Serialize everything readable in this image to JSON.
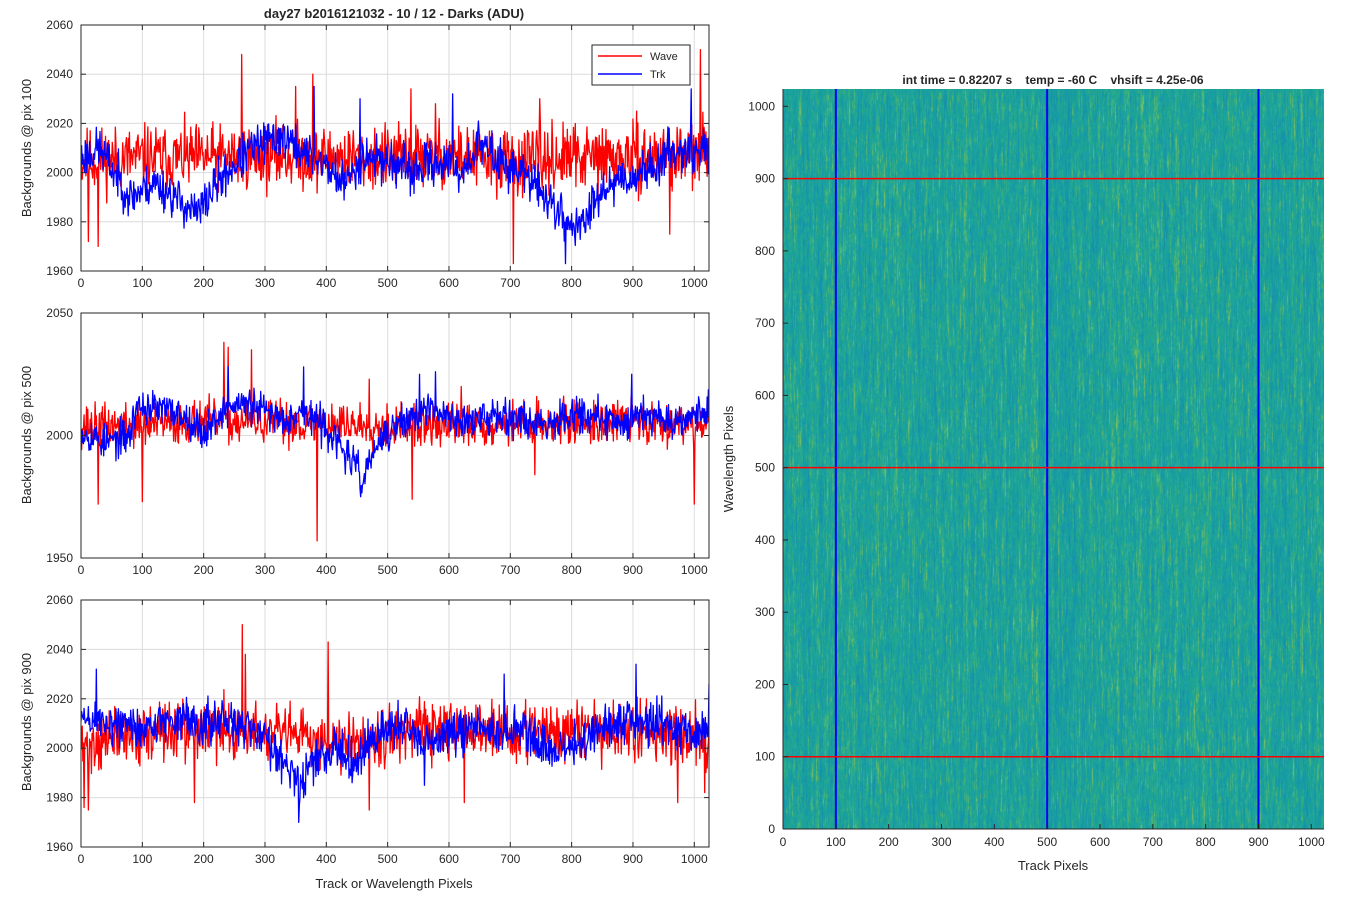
{
  "colors": {
    "wave": "#ff0000",
    "trk": "#0000ff",
    "axis": "#262626",
    "grid": "#dcdcdc",
    "image_base": "#1fa39a",
    "image_light": "#7cc07a",
    "image_dark": "#1592a8"
  },
  "chart_data": [
    {
      "type": "line",
      "title": "day27 b2016121032 - 10 / 12 - Darks (ADU)",
      "xlabel": "",
      "ylabel": "Backgrounds @ pix 100",
      "xlim": [
        0,
        1024
      ],
      "ylim": [
        1960,
        2060
      ],
      "xticks": [
        0,
        100,
        200,
        300,
        400,
        500,
        600,
        700,
        800,
        900,
        1000
      ],
      "yticks": [
        1960,
        1980,
        2000,
        2020,
        2040,
        2060
      ],
      "grid": true,
      "legend": {
        "placement": "top-right",
        "entries": [
          "Wave",
          "Trk"
        ]
      },
      "series": [
        {
          "name": "Wave",
          "color": "#ff0000",
          "noise": 9,
          "seed": 11,
          "anchors": [
            [
              0,
              2005
            ],
            [
              100,
              2006
            ],
            [
              200,
              2006
            ],
            [
              300,
              2007
            ],
            [
              400,
              2006
            ],
            [
              500,
              2006
            ],
            [
              600,
              2007
            ],
            [
              700,
              2004
            ],
            [
              800,
              2006
            ],
            [
              900,
              2006
            ],
            [
              1024,
              2008
            ]
          ],
          "spikes": [
            [
              12,
              1972
            ],
            [
              28,
              1970
            ],
            [
              262,
              2048
            ],
            [
              350,
              2035
            ],
            [
              378,
              2040
            ],
            [
              538,
              2034
            ],
            [
              578,
              2028
            ],
            [
              705,
              1963
            ],
            [
              748,
              2030
            ],
            [
              960,
              1975
            ],
            [
              1010,
              2050
            ]
          ]
        },
        {
          "name": "Trk",
          "color": "#0000ff",
          "noise": 6,
          "seed": 23,
          "anchors": [
            [
              0,
              2006
            ],
            [
              30,
              2010
            ],
            [
              80,
              1990
            ],
            [
              120,
              1996
            ],
            [
              190,
              1983
            ],
            [
              220,
              1995
            ],
            [
              250,
              2003
            ],
            [
              280,
              2010
            ],
            [
              330,
              2015
            ],
            [
              360,
              2008
            ],
            [
              390,
              2005
            ],
            [
              430,
              1995
            ],
            [
              460,
              2007
            ],
            [
              500,
              2005
            ],
            [
              540,
              2000
            ],
            [
              580,
              2005
            ],
            [
              620,
              2000
            ],
            [
              650,
              2012
            ],
            [
              680,
              2005
            ],
            [
              720,
              2000
            ],
            [
              760,
              1990
            ],
            [
              790,
              1980
            ],
            [
              820,
              1978
            ],
            [
              840,
              1992
            ],
            [
              880,
              1998
            ],
            [
              900,
              1998
            ],
            [
              930,
              2002
            ],
            [
              970,
              2010
            ],
            [
              1000,
              2008
            ],
            [
              1024,
              2010
            ]
          ],
          "spikes": [
            [
              380,
              2035
            ],
            [
              455,
              2030
            ],
            [
              606,
              2032
            ],
            [
              790,
              1963
            ],
            [
              995,
              2034
            ]
          ]
        }
      ]
    },
    {
      "type": "line",
      "xlabel": "",
      "ylabel": "Backgrounds @ pix 500",
      "xlim": [
        0,
        1024
      ],
      "ylim": [
        1950,
        2050
      ],
      "xticks": [
        0,
        100,
        200,
        300,
        400,
        500,
        600,
        700,
        800,
        900,
        1000
      ],
      "yticks": [
        1950,
        2000,
        2050
      ],
      "grid": true,
      "series": [
        {
          "name": "Wave",
          "color": "#ff0000",
          "noise": 6,
          "seed": 37,
          "anchors": [
            [
              0,
              2004
            ],
            [
              100,
              2004
            ],
            [
              200,
              2006
            ],
            [
              300,
              2005
            ],
            [
              400,
              2005
            ],
            [
              500,
              2004
            ],
            [
              600,
              2004
            ],
            [
              700,
              2005
            ],
            [
              800,
              2005
            ],
            [
              900,
              2006
            ],
            [
              1024,
              2005
            ]
          ],
          "spikes": [
            [
              28,
              1972
            ],
            [
              100,
              1973
            ],
            [
              233,
              2038
            ],
            [
              240,
              2036
            ],
            [
              278,
              2035
            ],
            [
              385,
              1957
            ],
            [
              470,
              2023
            ],
            [
              540,
              1974
            ],
            [
              620,
              2020
            ],
            [
              740,
              1984
            ],
            [
              1000,
              1972
            ]
          ]
        },
        {
          "name": "Trk",
          "color": "#0000ff",
          "noise": 5,
          "seed": 53,
          "anchors": [
            [
              0,
              2002
            ],
            [
              40,
              1997
            ],
            [
              80,
              2000
            ],
            [
              90,
              2012
            ],
            [
              150,
              2010
            ],
            [
              180,
              2006
            ],
            [
              200,
              2001
            ],
            [
              230,
              2010
            ],
            [
              260,
              2013
            ],
            [
              300,
              2010
            ],
            [
              330,
              2007
            ],
            [
              360,
              2010
            ],
            [
              400,
              2003
            ],
            [
              440,
              1990
            ],
            [
              460,
              1982
            ],
            [
              480,
              1995
            ],
            [
              520,
              2005
            ],
            [
              560,
              2010
            ],
            [
              600,
              2008
            ],
            [
              640,
              2005
            ],
            [
              680,
              2010
            ],
            [
              720,
              2006
            ],
            [
              760,
              2005
            ],
            [
              800,
              2010
            ],
            [
              840,
              2007
            ],
            [
              880,
              2005
            ],
            [
              920,
              2010
            ],
            [
              960,
              2006
            ],
            [
              1000,
              2008
            ],
            [
              1024,
              2012
            ]
          ],
          "spikes": [
            [
              240,
              2028
            ],
            [
              363,
              2028
            ],
            [
              456,
              1975
            ],
            [
              552,
              2025
            ],
            [
              578,
              2026
            ],
            [
              898,
              2025
            ]
          ]
        }
      ]
    },
    {
      "type": "line",
      "xlabel": "Track or Wavelength Pixels",
      "ylabel": "Backgrounds @ pix 900",
      "xlim": [
        0,
        1024
      ],
      "ylim": [
        1960,
        2060
      ],
      "xticks": [
        0,
        100,
        200,
        300,
        400,
        500,
        600,
        700,
        800,
        900,
        1000
      ],
      "yticks": [
        1960,
        1980,
        2000,
        2020,
        2040,
        2060
      ],
      "grid": true,
      "series": [
        {
          "name": "Wave",
          "color": "#ff0000",
          "noise": 8,
          "seed": 71,
          "anchors": [
            [
              0,
              2000
            ],
            [
              50,
              2004
            ],
            [
              100,
              2006
            ],
            [
              200,
              2008
            ],
            [
              300,
              2006
            ],
            [
              400,
              2003
            ],
            [
              500,
              2006
            ],
            [
              600,
              2007
            ],
            [
              700,
              2006
            ],
            [
              800,
              2007
            ],
            [
              900,
              2007
            ],
            [
              1024,
              2005
            ]
          ],
          "spikes": [
            [
              5,
              1976
            ],
            [
              12,
              1975
            ],
            [
              185,
              1978
            ],
            [
              263,
              2050
            ],
            [
              268,
              2038
            ],
            [
              403,
              2043
            ],
            [
              470,
              1975
            ],
            [
              625,
              1978
            ],
            [
              690,
              2018
            ],
            [
              973,
              1978
            ],
            [
              1017,
              1982
            ]
          ]
        },
        {
          "name": "Trk",
          "color": "#0000ff",
          "noise": 6,
          "seed": 89,
          "anchors": [
            [
              0,
              2012
            ],
            [
              50,
              2010
            ],
            [
              100,
              2008
            ],
            [
              150,
              2012
            ],
            [
              200,
              2010
            ],
            [
              250,
              2010
            ],
            [
              300,
              2005
            ],
            [
              340,
              1992
            ],
            [
              360,
              1985
            ],
            [
              380,
              1995
            ],
            [
              420,
              2000
            ],
            [
              450,
              1995
            ],
            [
              480,
              2005
            ],
            [
              520,
              2010
            ],
            [
              560,
              2000
            ],
            [
              600,
              2005
            ],
            [
              640,
              2010
            ],
            [
              680,
              2005
            ],
            [
              720,
              2008
            ],
            [
              760,
              1998
            ],
            [
              800,
              2000
            ],
            [
              850,
              2008
            ],
            [
              900,
              2012
            ],
            [
              950,
              2010
            ],
            [
              1000,
              2005
            ],
            [
              1024,
              2010
            ]
          ],
          "spikes": [
            [
              25,
              2032
            ],
            [
              355,
              1970
            ],
            [
              560,
              1985
            ],
            [
              690,
              2030
            ],
            [
              905,
              2034
            ],
            [
              1024,
              2026
            ]
          ]
        }
      ]
    },
    {
      "type": "heatmap",
      "title": "int time = 0.82207 s    temp = -60 C    vhsift = 4.25e-06",
      "xlabel": "Track Pixels",
      "ylabel": "Wavelength Pixels",
      "xlim": [
        0,
        1024
      ],
      "ylim": [
        0,
        1024
      ],
      "xticks": [
        0,
        100,
        200,
        300,
        400,
        500,
        600,
        700,
        800,
        900,
        1000
      ],
      "yticks": [
        0,
        100,
        200,
        300,
        400,
        500,
        600,
        700,
        800,
        900,
        1000
      ],
      "colormap": "parula",
      "vertical_markers": {
        "color": "#0000ff",
        "positions": [
          100,
          500,
          900
        ]
      },
      "horizontal_markers": {
        "color": "#ff0000",
        "positions": [
          100,
          500,
          900
        ]
      }
    }
  ]
}
